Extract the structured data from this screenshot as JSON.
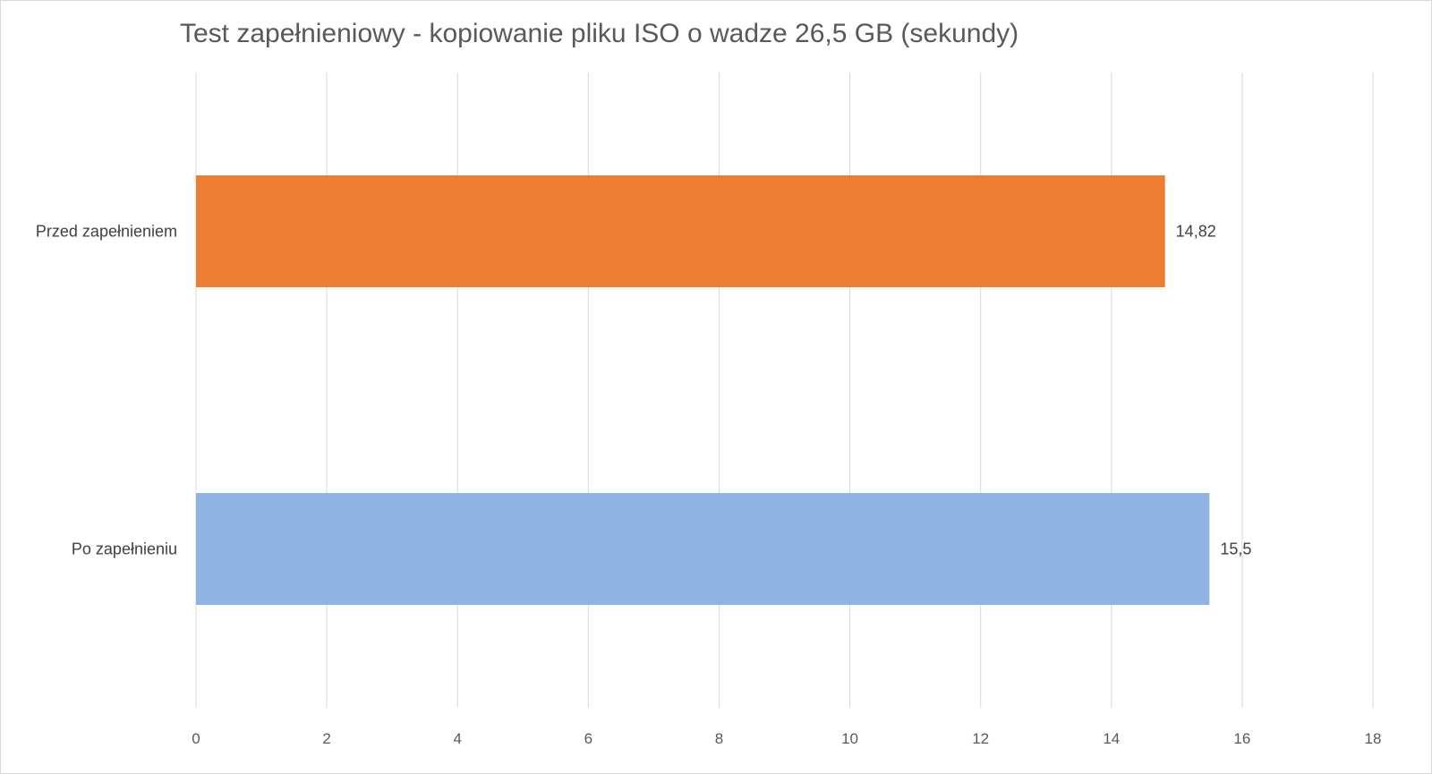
{
  "chart_data": {
    "type": "bar",
    "orientation": "horizontal",
    "title": "Test zapełnieniowy - kopiowanie pliku ISO o wadze 26,5 GB (sekundy)",
    "categories": [
      "Przed zapełnieniem",
      "Po zapełnieniu"
    ],
    "values": [
      14.82,
      15.5
    ],
    "value_labels": [
      "14,82",
      "15,5"
    ],
    "colors": [
      "#ED7D31",
      "#8FB4E3"
    ],
    "xlim": [
      0,
      18
    ],
    "xticks": [
      "0",
      "2",
      "4",
      "6",
      "8",
      "10",
      "12",
      "14",
      "16",
      "18"
    ],
    "grid": true,
    "legend": "none"
  }
}
